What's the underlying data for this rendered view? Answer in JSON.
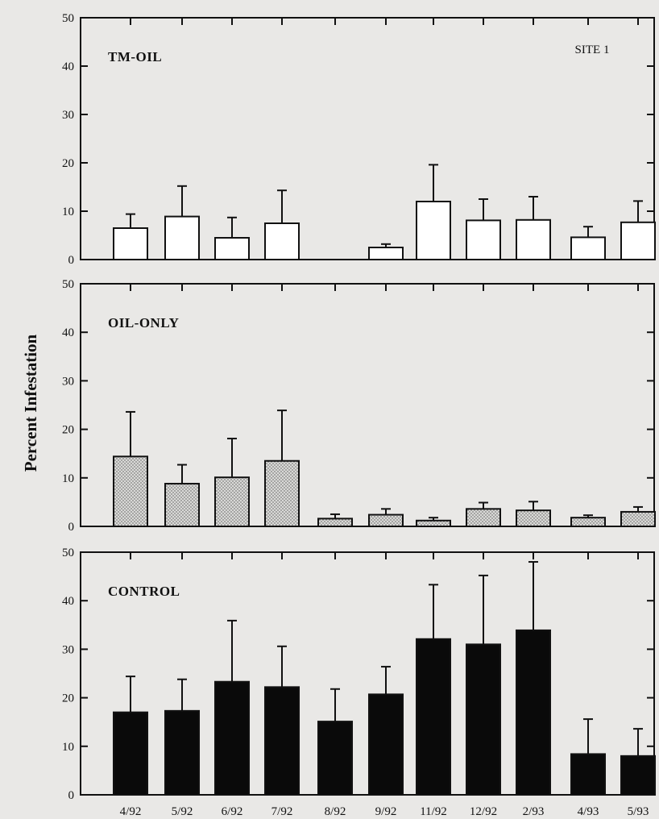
{
  "chart_data": {
    "type": "bar",
    "title": "",
    "site_label": "SITE 1",
    "ylabel": "Percent Infestation",
    "xlabel": "",
    "categories": [
      "4/92",
      "5/92",
      "6/92",
      "7/92",
      "8/92",
      "9/92",
      "11/92",
      "12/92",
      "2/93",
      "4/93",
      "5/93"
    ],
    "ylim": [
      0,
      50
    ],
    "yticks": [
      0,
      10,
      20,
      30,
      40,
      50
    ],
    "grid": false,
    "panels": [
      {
        "label": "TM-OIL",
        "fill": "white",
        "values": [
          6.5,
          8.9,
          4.5,
          7.5,
          null,
          2.5,
          12.0,
          8.1,
          8.2,
          4.6,
          7.7
        ],
        "error_upper": [
          9.4,
          15.2,
          8.7,
          14.3,
          null,
          3.2,
          19.6,
          12.5,
          13.0,
          6.8,
          12.1
        ]
      },
      {
        "label": "OIL-ONLY",
        "fill": "stippled",
        "values": [
          14.4,
          8.8,
          10.1,
          13.5,
          1.6,
          2.4,
          1.2,
          3.6,
          3.3,
          1.8,
          3.0
        ],
        "error_upper": [
          23.6,
          12.7,
          18.1,
          23.9,
          2.5,
          3.6,
          1.8,
          4.9,
          5.1,
          2.3,
          4.0
        ]
      },
      {
        "label": "CONTROL",
        "fill": "black",
        "values": [
          17.0,
          17.3,
          23.3,
          22.2,
          15.1,
          20.7,
          32.1,
          31.0,
          33.9,
          8.4,
          8.0
        ],
        "error_upper": [
          24.4,
          23.8,
          35.9,
          30.6,
          21.8,
          26.4,
          43.3,
          45.2,
          48.0,
          15.6,
          13.6
        ]
      }
    ]
  }
}
